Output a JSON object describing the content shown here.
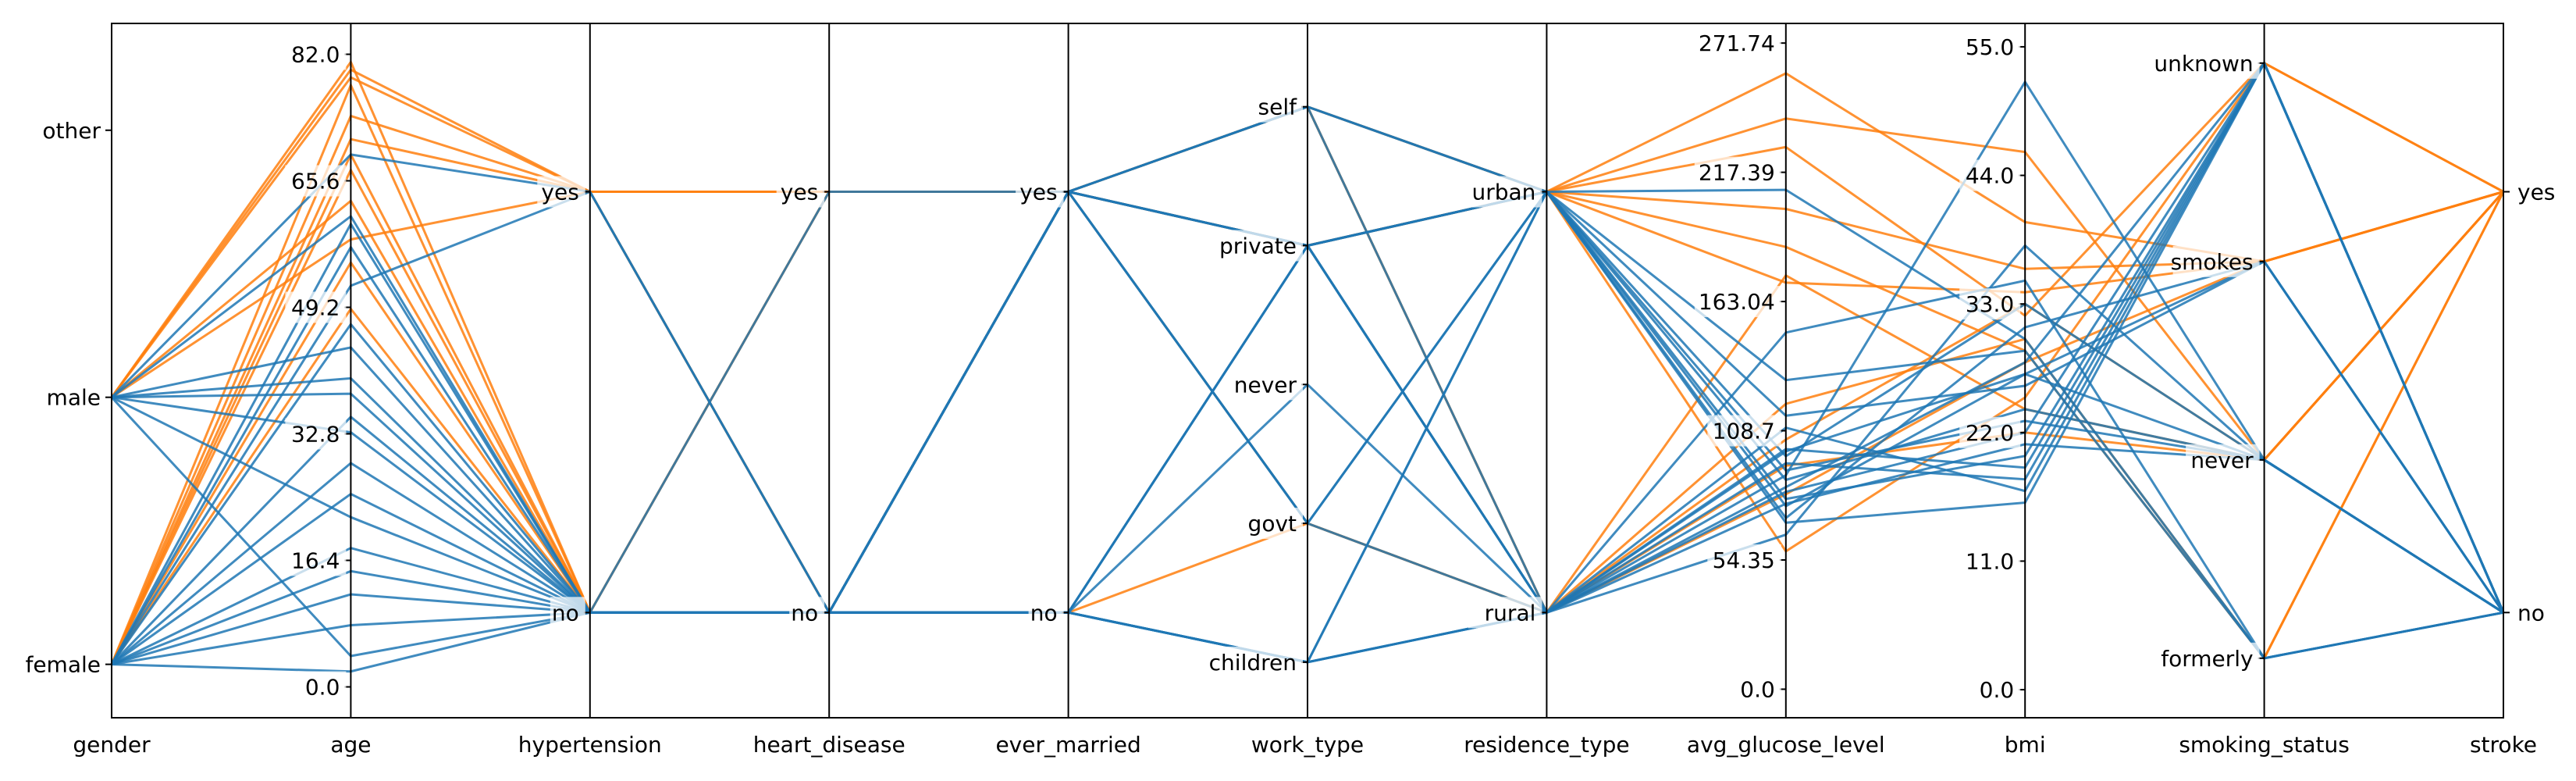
{
  "chart_data": {
    "type": "parallel_coordinates",
    "colors": {
      "no": "#1f77b4",
      "yes": "#ff7f0e"
    },
    "color_by": "stroke",
    "axes": [
      {
        "name": "gender",
        "ticks": [
          {
            "label": "female",
            "value": 0
          },
          {
            "label": "male",
            "value": 1
          },
          {
            "label": "other",
            "value": 2
          }
        ],
        "range": [
          -0.2,
          2.4
        ],
        "tick_side": "left"
      },
      {
        "name": "age",
        "ticks": [
          {
            "label": "0.0",
            "value": 0.0
          },
          {
            "label": "16.4",
            "value": 16.4
          },
          {
            "label": "32.8",
            "value": 32.8
          },
          {
            "label": "49.2",
            "value": 49.2
          },
          {
            "label": "65.6",
            "value": 65.6
          },
          {
            "label": "82.0",
            "value": 82.0
          }
        ],
        "range": [
          -4,
          86
        ],
        "tick_side": "left"
      },
      {
        "name": "hypertension",
        "ticks": [
          {
            "label": "no",
            "value": 0
          },
          {
            "label": "yes",
            "value": 1
          }
        ],
        "range": [
          -0.25,
          1.4
        ],
        "tick_side": "left"
      },
      {
        "name": "heart_disease",
        "ticks": [
          {
            "label": "no",
            "value": 0
          },
          {
            "label": "yes",
            "value": 1
          }
        ],
        "range": [
          -0.25,
          1.4
        ],
        "tick_side": "left"
      },
      {
        "name": "ever_married",
        "ticks": [
          {
            "label": "no",
            "value": 0
          },
          {
            "label": "yes",
            "value": 1
          }
        ],
        "range": [
          -0.25,
          1.4
        ],
        "tick_side": "left"
      },
      {
        "name": "work_type",
        "ticks": [
          {
            "label": "children",
            "value": 0
          },
          {
            "label": "govt",
            "value": 1
          },
          {
            "label": "never",
            "value": 2
          },
          {
            "label": "private",
            "value": 3
          },
          {
            "label": "self",
            "value": 4
          }
        ],
        "range": [
          -0.4,
          4.6
        ],
        "tick_side": "left"
      },
      {
        "name": "residence_type",
        "ticks": [
          {
            "label": "rural",
            "value": 0
          },
          {
            "label": "urban",
            "value": 1
          }
        ],
        "range": [
          -0.25,
          1.4
        ],
        "tick_side": "left"
      },
      {
        "name": "avg_glucose_level",
        "ticks": [
          {
            "label": "0.0",
            "value": 0.0
          },
          {
            "label": "54.35",
            "value": 54.35
          },
          {
            "label": "108.7",
            "value": 108.7
          },
          {
            "label": "163.04",
            "value": 163.04
          },
          {
            "label": "217.39",
            "value": 217.39
          },
          {
            "label": "271.74",
            "value": 271.74
          }
        ],
        "range": [
          -12,
          280
        ],
        "tick_side": "left"
      },
      {
        "name": "bmi",
        "ticks": [
          {
            "label": "0.0",
            "value": 0.0
          },
          {
            "label": "11.0",
            "value": 11.0
          },
          {
            "label": "22.0",
            "value": 22.0
          },
          {
            "label": "33.0",
            "value": 33.0
          },
          {
            "label": "44.0",
            "value": 44.0
          },
          {
            "label": "55.0",
            "value": 55.0
          }
        ],
        "range": [
          -2.4,
          57
        ],
        "tick_side": "left"
      },
      {
        "name": "smoking_status",
        "ticks": [
          {
            "label": "formerly",
            "value": 0
          },
          {
            "label": "never",
            "value": 1
          },
          {
            "label": "smokes",
            "value": 2
          },
          {
            "label": "unknown",
            "value": 3
          }
        ],
        "range": [
          -0.3,
          3.2
        ],
        "tick_side": "left"
      },
      {
        "name": "stroke",
        "ticks": [
          {
            "label": "no",
            "value": 0
          },
          {
            "label": "yes",
            "value": 1
          }
        ],
        "range": [
          -0.25,
          1.4
        ],
        "tick_side": "right"
      }
    ],
    "records": [
      {
        "gender": 1,
        "age": 79,
        "hypertension": 1,
        "heart_disease": 1,
        "ever_married": 1,
        "work_type": 4,
        "residence_type": 1,
        "avg_glucose_level": 228,
        "bmi": 32,
        "smoking_status": 3,
        "stroke": 1
      },
      {
        "gender": 0,
        "age": 67,
        "hypertension": 0,
        "heart_disease": 1,
        "ever_married": 1,
        "work_type": 3,
        "residence_type": 1,
        "avg_glucose_level": 202,
        "bmi": 36,
        "smoking_status": 2,
        "stroke": 1
      },
      {
        "gender": 1,
        "age": 80,
        "hypertension": 1,
        "heart_disease": 0,
        "ever_married": 1,
        "work_type": 3,
        "residence_type": 0,
        "avg_glucose_level": 105,
        "bmi": 33,
        "smoking_status": 1,
        "stroke": 1
      },
      {
        "gender": 0,
        "age": 49,
        "hypertension": 0,
        "heart_disease": 0,
        "ever_married": 1,
        "work_type": 3,
        "residence_type": 1,
        "avg_glucose_level": 171,
        "bmi": 34,
        "smoking_status": 2,
        "stroke": 1
      },
      {
        "gender": 0,
        "age": 74,
        "hypertension": 1,
        "heart_disease": 0,
        "ever_married": 1,
        "work_type": 4,
        "residence_type": 0,
        "avg_glucose_level": 174,
        "bmi": 24,
        "smoking_status": 1,
        "stroke": 1
      },
      {
        "gender": 1,
        "age": 81,
        "hypertension": 0,
        "heart_disease": 0,
        "ever_married": 1,
        "work_type": 3,
        "residence_type": 1,
        "avg_glucose_level": 186,
        "bmi": 29,
        "smoking_status": 0,
        "stroke": 1
      },
      {
        "gender": 0,
        "age": 69,
        "hypertension": 0,
        "heart_disease": 1,
        "ever_married": 1,
        "work_type": 1,
        "residence_type": 0,
        "avg_glucose_level": 94,
        "bmi": 22,
        "smoking_status": 1,
        "stroke": 1
      },
      {
        "gender": 1,
        "age": 58,
        "hypertension": 1,
        "heart_disease": 0,
        "ever_married": 1,
        "work_type": 3,
        "residence_type": 1,
        "avg_glucose_level": 259,
        "bmi": 40,
        "smoking_status": 2,
        "stroke": 1
      },
      {
        "gender": 0,
        "age": 78,
        "hypertension": 0,
        "heart_disease": 0,
        "ever_married": 1,
        "work_type": 4,
        "residence_type": 1,
        "avg_glucose_level": 58,
        "bmi": 25,
        "smoking_status": 3,
        "stroke": 1
      },
      {
        "gender": 1,
        "age": 63,
        "hypertension": 0,
        "heart_disease": 0,
        "ever_married": 0,
        "work_type": 1,
        "residence_type": 0,
        "avg_glucose_level": 120,
        "bmi": 30,
        "smoking_status": 0,
        "stroke": 1
      },
      {
        "gender": 0,
        "age": 71,
        "hypertension": 1,
        "heart_disease": 1,
        "ever_married": 1,
        "work_type": 3,
        "residence_type": 1,
        "avg_glucose_level": 240,
        "bmi": 46,
        "smoking_status": 1,
        "stroke": 1
      },
      {
        "gender": 0,
        "age": 55,
        "hypertension": 0,
        "heart_disease": 0,
        "ever_married": 1,
        "work_type": 4,
        "residence_type": 0,
        "avg_glucose_level": 82,
        "bmi": 28,
        "smoking_status": 2,
        "stroke": 1
      },
      {
        "gender": 1,
        "age": 4,
        "hypertension": 0,
        "heart_disease": 0,
        "ever_married": 0,
        "work_type": 0,
        "residence_type": 0,
        "avg_glucose_level": 95,
        "bmi": 18,
        "smoking_status": 3,
        "stroke": 0
      },
      {
        "gender": 0,
        "age": 12,
        "hypertension": 0,
        "heart_disease": 0,
        "ever_married": 0,
        "work_type": 0,
        "residence_type": 1,
        "avg_glucose_level": 80,
        "bmi": 20,
        "smoking_status": 3,
        "stroke": 0
      },
      {
        "gender": 0,
        "age": 8,
        "hypertension": 0,
        "heart_disease": 0,
        "ever_married": 0,
        "work_type": 0,
        "residence_type": 0,
        "avg_glucose_level": 110,
        "bmi": 17,
        "smoking_status": 3,
        "stroke": 0
      },
      {
        "gender": 1,
        "age": 22,
        "hypertension": 0,
        "heart_disease": 0,
        "ever_married": 0,
        "work_type": 3,
        "residence_type": 1,
        "avg_glucose_level": 88,
        "bmi": 24,
        "smoking_status": 1,
        "stroke": 0
      },
      {
        "gender": 0,
        "age": 35,
        "hypertension": 0,
        "heart_disease": 0,
        "ever_married": 1,
        "work_type": 3,
        "residence_type": 0,
        "avg_glucose_level": 100,
        "bmi": 27,
        "smoking_status": 1,
        "stroke": 0
      },
      {
        "gender": 1,
        "age": 44,
        "hypertension": 0,
        "heart_disease": 0,
        "ever_married": 1,
        "work_type": 1,
        "residence_type": 1,
        "avg_glucose_level": 72,
        "bmi": 31,
        "smoking_status": 2,
        "stroke": 0
      },
      {
        "gender": 0,
        "age": 29,
        "hypertension": 0,
        "heart_disease": 0,
        "ever_married": 0,
        "work_type": 3,
        "residence_type": 1,
        "avg_glucose_level": 92,
        "bmi": 23,
        "smoking_status": 1,
        "stroke": 0
      },
      {
        "gender": 0,
        "age": 52,
        "hypertension": 1,
        "heart_disease": 0,
        "ever_married": 1,
        "work_type": 4,
        "residence_type": 0,
        "avg_glucose_level": 150,
        "bmi": 35,
        "smoking_status": 0,
        "stroke": 0
      },
      {
        "gender": 1,
        "age": 61,
        "hypertension": 0,
        "heart_disease": 1,
        "ever_married": 1,
        "work_type": 3,
        "residence_type": 1,
        "avg_glucose_level": 130,
        "bmi": 29,
        "smoking_status": 0,
        "stroke": 0
      },
      {
        "gender": 0,
        "age": 18,
        "hypertension": 0,
        "heart_disease": 0,
        "ever_married": 0,
        "work_type": 2,
        "residence_type": 0,
        "avg_glucose_level": 78,
        "bmi": 21,
        "smoking_status": 1,
        "stroke": 0
      },
      {
        "gender": 1,
        "age": 40,
        "hypertension": 0,
        "heart_disease": 0,
        "ever_married": 1,
        "work_type": 3,
        "residence_type": 0,
        "avg_glucose_level": 85,
        "bmi": 28,
        "smoking_status": 3,
        "stroke": 0
      },
      {
        "gender": 0,
        "age": 57,
        "hypertension": 0,
        "heart_disease": 0,
        "ever_married": 1,
        "work_type": 1,
        "residence_type": 1,
        "avg_glucose_level": 98,
        "bmi": 33,
        "smoking_status": 1,
        "stroke": 0
      },
      {
        "gender": 0,
        "age": 2,
        "hypertension": 0,
        "heart_disease": 0,
        "ever_married": 0,
        "work_type": 0,
        "residence_type": 1,
        "avg_glucose_level": 70,
        "bmi": 16,
        "smoking_status": 3,
        "stroke": 0
      },
      {
        "gender": 1,
        "age": 33,
        "hypertension": 0,
        "heart_disease": 0,
        "ever_married": 1,
        "work_type": 4,
        "residence_type": 1,
        "avg_glucose_level": 115,
        "bmi": 26,
        "smoking_status": 2,
        "stroke": 0
      },
      {
        "gender": 0,
        "age": 47,
        "hypertension": 0,
        "heart_disease": 0,
        "ever_married": 1,
        "work_type": 3,
        "residence_type": 0,
        "avg_glucose_level": 65,
        "bmi": 38,
        "smoking_status": 1,
        "stroke": 0
      },
      {
        "gender": 1,
        "age": 69,
        "hypertension": 1,
        "heart_disease": 0,
        "ever_married": 1,
        "work_type": 4,
        "residence_type": 1,
        "avg_glucose_level": 210,
        "bmi": 30,
        "smoking_status": 0,
        "stroke": 0
      },
      {
        "gender": 0,
        "age": 25,
        "hypertension": 0,
        "heart_disease": 0,
        "ever_married": 0,
        "work_type": 3,
        "residence_type": 0,
        "avg_glucose_level": 83,
        "bmi": 22,
        "smoking_status": 3,
        "stroke": 0
      },
      {
        "gender": 0,
        "age": 15,
        "hypertension": 0,
        "heart_disease": 0,
        "ever_married": 0,
        "work_type": 0,
        "residence_type": 0,
        "avg_glucose_level": 101,
        "bmi": 19,
        "smoking_status": 3,
        "stroke": 0
      },
      {
        "gender": 1,
        "age": 38,
        "hypertension": 0,
        "heart_disease": 0,
        "ever_married": 1,
        "work_type": 1,
        "residence_type": 0,
        "avg_glucose_level": 90,
        "bmi": 52,
        "smoking_status": 1,
        "stroke": 0
      },
      {
        "gender": 0,
        "age": 60,
        "hypertension": 0,
        "heart_disease": 0,
        "ever_married": 1,
        "work_type": 3,
        "residence_type": 1,
        "avg_glucose_level": 77,
        "bmi": 27,
        "smoking_status": 2,
        "stroke": 0
      }
    ]
  }
}
